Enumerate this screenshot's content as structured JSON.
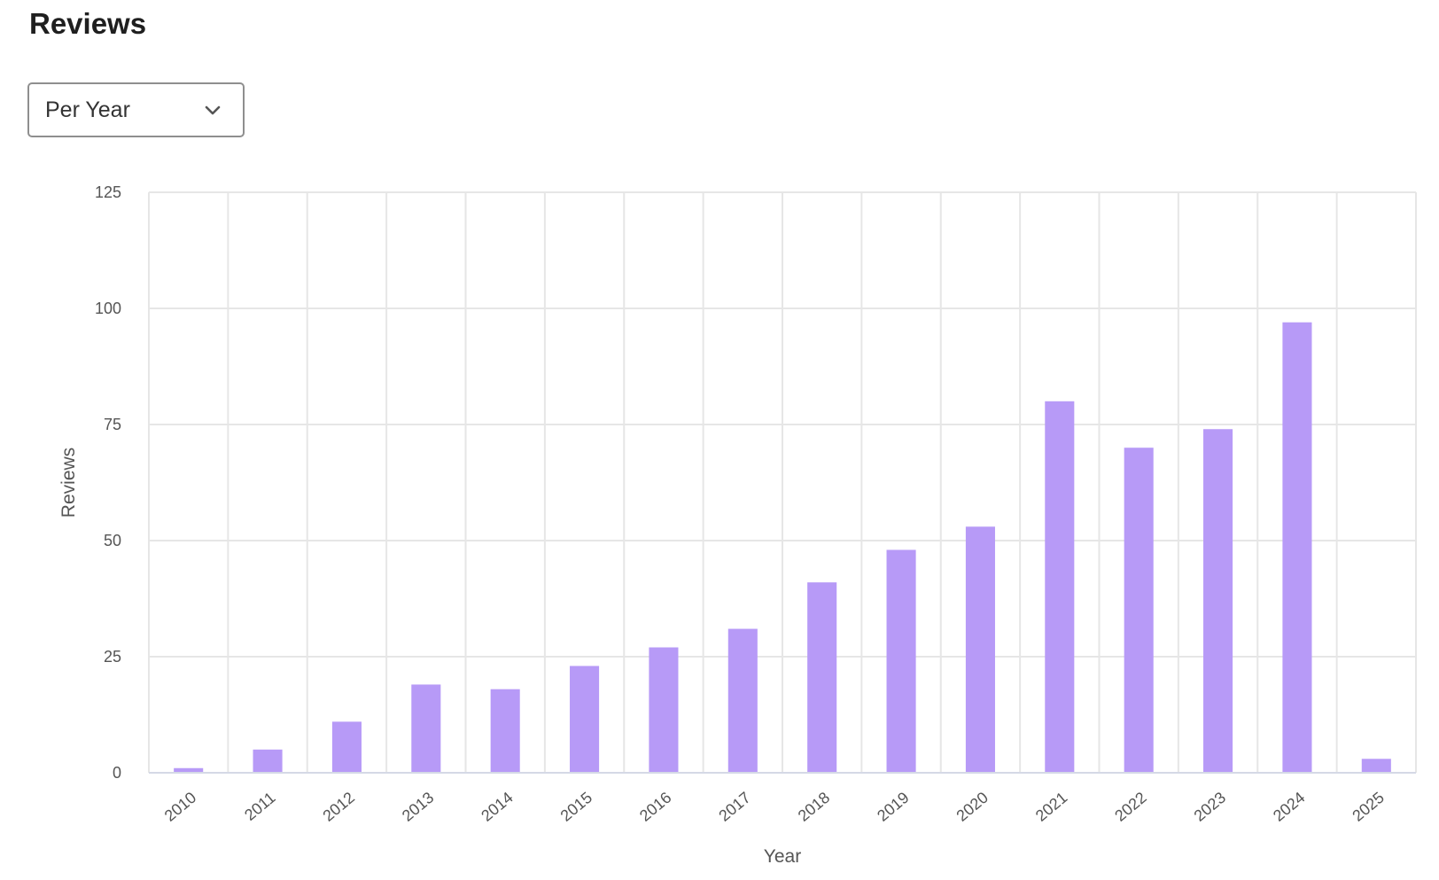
{
  "header": {
    "title": "Reviews"
  },
  "period_select": {
    "value": "Per Year",
    "icon": "chevron-down-icon"
  },
  "chart_data": {
    "type": "bar",
    "title": "",
    "xlabel": "Year",
    "ylabel": "Reviews",
    "categories": [
      "2010",
      "2011",
      "2012",
      "2013",
      "2014",
      "2015",
      "2016",
      "2017",
      "2018",
      "2019",
      "2020",
      "2021",
      "2022",
      "2023",
      "2024",
      "2025"
    ],
    "values": [
      1,
      5,
      11,
      19,
      18,
      23,
      27,
      31,
      41,
      48,
      53,
      80,
      70,
      74,
      97,
      3
    ],
    "ylim": [
      0,
      125
    ],
    "yticks": [
      0,
      25,
      50,
      75,
      100,
      125
    ],
    "grid": true,
    "bar_color": "#b79af7",
    "grid_color": "#e6e6e6"
  }
}
